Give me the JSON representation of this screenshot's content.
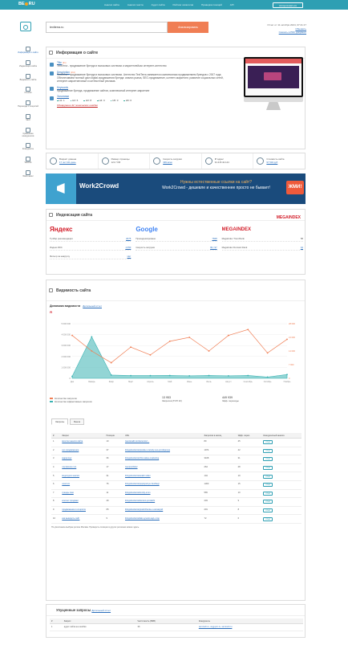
{
  "brand": {
    "logo_left": "BE",
    "logo_right": "RU"
  },
  "nav": [
    "Анализ сайта",
    "Анализ текста",
    "Аудит сайта",
    "Рейтинг каталогов",
    "Проверка позиций",
    "API"
  ],
  "header": {
    "login_label": "Авторизоваться"
  },
  "search": {
    "value": "textterra.ru",
    "button": "Анализировать",
    "checked": "Отчет от 11 октября 2024, 07:41:17",
    "refresh": "Обновить",
    "pdf": "Скачать в PDF документ"
  },
  "sidebar": [
    "Информация о сайте",
    "Индексация сайта",
    "Видимость сайта",
    "Ссылки",
    "Переходы с соцсетей",
    "SEO",
    "Сравнение конкурентов",
    "Конкуренты",
    "WHOIS",
    "Webmaster"
  ],
  "info": {
    "title": "Информация о сайте",
    "rows": [
      {
        "label": "Title",
        "count": "(91)",
        "text": "TextTerra - продвижение бренда в поисковых системах и маркетплейсах интернет-агентство"
      },
      {
        "label": "Description",
        "count": "(211)",
        "text": "TextTerra - продвижение бренда в поисковых системах. Агентство TextTerra занимается комплексным продвижением брендов с 2007 года. Обеспечиваем полный цикл digital-продвижения бренда: анализ рынка, SEO-продвижение, контент-маркетинг, развитие социальных сетей, интернет-маркетинговый и контекстный реклама."
      },
      {
        "label": "Keywords",
        "count": "",
        "text": "продвижение бренда, продвижение сайтов, комплексный интернет-маркетинг"
      },
      {
        "label": "Заголовки",
        "count": "",
        "text": ""
      }
    ],
    "headings": [
      "H1: 1",
      "H2: 6",
      "H3: 8",
      "H4: 0",
      "H5: 0",
      "H6: 0"
    ],
    "error_link": "Обнаружено 42 технических ошибки"
  },
  "stats": [
    {
      "label": "Возраст домена",
      "value": "17 лет 101 день"
    },
    {
      "label": "Размер страницы",
      "value": "121.7 KB"
    },
    {
      "label": "Скорость загрузки",
      "value": "339 мсек"
    },
    {
      "label": "IP адрес",
      "value": "91.215.42.144"
    },
    {
      "label": "Стоимость сайта",
      "value": "97 534 руб"
    }
  ],
  "banner": {
    "brand": "Work2Crowd",
    "line1": "Нужны естественные ссылки на сайт?",
    "line2": "Work2Crowd - дешевле и качественнее просто не бывает!",
    "cta": "ЖМИ!"
  },
  "indexing": {
    "title": "Индексация сайта",
    "mega_logo": "MEGAINDEX",
    "yandex": {
      "logo": "Яндекс",
      "rows": [
        {
          "k": "Тулбар рекомендация",
          "v": "2075"
        },
        {
          "k": "Индекс ИКС",
          "v": "1 050"
        },
        {
          "k": "Фильтр за накрутку",
          "v": "Нет"
        }
      ]
    },
    "google": {
      "logo": "Google",
      "rows": [
        {
          "k": "Проиндексировано",
          "v": "7848"
        },
        {
          "k": "Скорость загрузки",
          "v": "99 / 97"
        }
      ]
    },
    "megaindex": {
      "logo": "MEGAINDEX",
      "rows": [
        {
          "k": "MegaIndex Trust Rank",
          "v": "58"
        },
        {
          "k": "MegaIndex Domain Rank",
          "v": "44"
        }
      ]
    }
  },
  "visibility": {
    "title": "Видимость сайта",
    "chart_title": "Динамика видимости",
    "detail_link": "Детальный отчет",
    "legend": [
      "Количество запросов",
      "Количество эффективных запросов"
    ],
    "totals": [
      {
        "value": "13 953",
        "label": "Запросов (ТОП 10)"
      },
      {
        "value": "449 939",
        "label": "Эфф. переходы"
      }
    ],
    "tabs": [
      "Запросы",
      "Бенчи"
    ],
    "table": {
      "headers": [
        "#",
        "Запрос",
        "Позиция",
        "URL",
        "Запросов в месяц",
        "Эфф. перех.",
        "Конкурентный анализ"
      ],
      "rows": [
        [
          "1",
          "визитки анализ сайта",
          "10",
          "/seo/analiz-konkurentov/...",
          "80",
          "45",
          "отчет"
        ],
        [
          "2",
          "seo продвижение",
          "37",
          "/blogs/textterra/pravila-i-metody-seo-prodvijeniya",
          "1974",
          "42",
          "отчет"
        ],
        [
          "3",
          "маркетинг",
          "36",
          "/blogs/textterra/chto-takoe-marketing",
          "3108",
          "31",
          "отчет"
        ],
        [
          "4",
          "портфолио это",
          "17",
          "/seo/portfolio/",
          "264",
          "28",
          "отчет"
        ],
        [
          "5",
          "видеоурок анализ",
          "31",
          "/blogs/textterra/analiz-video",
          "104",
          "19",
          "отчет"
        ],
        [
          "6",
          "хештеги",
          "75",
          "/blogs/textterra/populyarnye-heshtegi",
          "1303",
          "15",
          "отчет"
        ],
        [
          "7",
          "тренды смм",
          "11",
          "/blogs/textterra/trendy-smm",
          "565",
          "10",
          "отчет"
        ],
        [
          "8",
          "контент продажи",
          "49",
          "/blogs/textterra/kontent-prodazhi",
          "203",
          "9",
          "отчет"
        ],
        [
          "9",
          "продвижение в соцсетях",
          "65",
          "/blogs/textterra/prodvizhenie-v-socsetyah",
          "201",
          "8",
          "отчет"
        ],
        [
          "10",
          "как выводить сайт",
          "9",
          "/blogs/textterra/kak-vyvesti-sayt-v-top",
          "72",
          "6",
          "отчет"
        ]
      ],
      "note": "По умолчанию выбран регион Москва. Проверить позиции в других регионах можно здесь."
    },
    "chart_data": {
      "type": "line",
      "categories": [
        "Дек",
        "Январь",
        "Февр",
        "Март",
        "Апрель",
        "Май",
        "Июнь",
        "Июль",
        "Август",
        "Сентябрь",
        "Октябрь",
        "Ноябрь"
      ],
      "series": [
        {
          "name": "Количество запросов",
          "values": [
            22000,
            14000,
            8000,
            16000,
            12000,
            19000,
            21000,
            14000,
            22000,
            25000,
            13000,
            20000
          ],
          "axis": "right",
          "color": "#f07e54"
        },
        {
          "name": "Количество эффективных запросов",
          "values": [
            180000,
            3800000,
            300000,
            250000,
            250000,
            260000,
            230000,
            260000,
            230000,
            260000,
            120000,
            350000
          ],
          "axis": "left",
          "color": "#3ab3b3"
        }
      ],
      "ylim_left": [
        0,
        5000000
      ],
      "ylim_right": [
        0,
        28000
      ],
      "left_ticks": [
        "5 000 000",
        "4 000 000",
        "3 000 000",
        "2 000 000",
        "1 000 000",
        "0"
      ],
      "right_ticks": [
        "28 000",
        "21 000",
        "14 000",
        "7 000",
        "0"
      ],
      "grid": true
    }
  },
  "queries": {
    "title": "Упущенные запросы",
    "detail_link": "Детальный отчет",
    "headers": [
      "#",
      "Запрос",
      "Частотность (ВКВ)",
      "Конкуренты"
    ],
    "rows": [
      [
        "1",
        "аудит сайта на ошибки",
        "36",
        "semrush.ru, vegy.pro.ru, semrush.ru"
      ]
    ]
  }
}
